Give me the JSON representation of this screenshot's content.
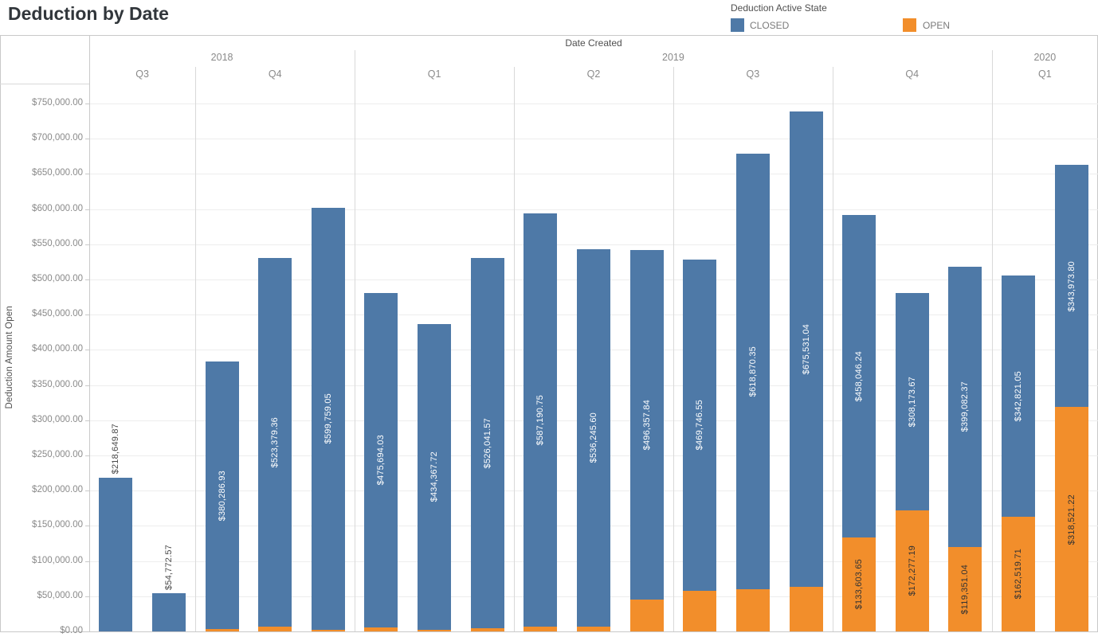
{
  "chart_data": {
    "type": "bar",
    "subtype": "stacked-vertical",
    "title": "Deduction by Date",
    "column_header": "Date Created",
    "ylabel": "Deduction Amount Open",
    "y_axis": {
      "min": 0,
      "max": 750000,
      "step": 50000
    },
    "y_tick_labels": [
      "$0.00",
      "$50,000.00",
      "$100,000.00",
      "$150,000.00",
      "$200,000.00",
      "$250,000.00",
      "$300,000.00",
      "$350,000.00",
      "$400,000.00",
      "$450,000.00",
      "$500,000.00",
      "$550,000.00",
      "$600,000.00",
      "$650,000.00",
      "$700,000.00",
      "$750,000.00"
    ],
    "legend": {
      "title": "Deduction Active State",
      "series": [
        {
          "name": "CLOSED",
          "color": "#4e79a7"
        },
        {
          "name": "OPEN",
          "color": "#f28e2b"
        }
      ]
    },
    "years": [
      {
        "year": "2018",
        "quarters": [
          {
            "quarter": "Q3",
            "bars": [
              {
                "closed": 218649.87,
                "open": 0,
                "closed_label": "$218,649.87",
                "closed_label_placement": "above"
              },
              {
                "closed": 54772.57,
                "open": 0,
                "closed_label": "$54,772.57",
                "closed_label_placement": "above"
              }
            ]
          },
          {
            "quarter": "Q4",
            "bars": [
              {
                "closed": 380286.93,
                "open": 3000,
                "closed_label": "$380,286.93"
              },
              {
                "closed": 523379.36,
                "open": 7200,
                "closed_label": "$523,379.36"
              },
              {
                "closed": 599759.05,
                "open": 2300,
                "closed_label": "$599,759.05"
              }
            ]
          }
        ]
      },
      {
        "year": "2019",
        "quarters": [
          {
            "quarter": "Q1",
            "bars": [
              {
                "closed": 475694.03,
                "open": 5400,
                "closed_label": "$475,694.03"
              },
              {
                "closed": 434367.72,
                "open": 2300,
                "closed_label": "$434,367.72"
              },
              {
                "closed": 526041.57,
                "open": 4000,
                "closed_label": "$526,041.57"
              }
            ]
          },
          {
            "quarter": "Q2",
            "bars": [
              {
                "closed": 587190.75,
                "open": 6900,
                "closed_label": "$587,190.75"
              },
              {
                "closed": 536245.6,
                "open": 6900,
                "closed_label": "$536,245.60"
              },
              {
                "closed": 496357.84,
                "open": 45000,
                "closed_label": "$496,357.84"
              }
            ]
          },
          {
            "quarter": "Q3",
            "bars": [
              {
                "closed": 469746.55,
                "open": 58000,
                "closed_label": "$469,746.55"
              },
              {
                "closed": 618870.35,
                "open": 60000,
                "closed_label": "$618,870.35"
              },
              {
                "closed": 675531.04,
                "open": 63000,
                "closed_label": "$675,531.04"
              }
            ]
          },
          {
            "quarter": "Q4",
            "bars": [
              {
                "closed": 458046.24,
                "open": 133603.65,
                "closed_label": "$458,046.24",
                "open_label": "$133,603.65"
              },
              {
                "closed": 308173.67,
                "open": 172277.19,
                "closed_label": "$308,173.67",
                "open_label": "$172,277.19"
              },
              {
                "closed": 399082.37,
                "open": 119351.04,
                "closed_label": "$399,082.37",
                "open_label": "$119,351.04"
              }
            ]
          }
        ]
      },
      {
        "year": "2020",
        "quarters": [
          {
            "quarter": "Q1",
            "bars": [
              {
                "closed": 342821.05,
                "open": 162519.71,
                "closed_label": "$342,821.05",
                "open_label": "$162,519.71"
              },
              {
                "closed": 343973.8,
                "open": 318521.22,
                "closed_label": "$343,973.80",
                "open_label": "$318,521.22"
              }
            ]
          }
        ]
      }
    ]
  }
}
